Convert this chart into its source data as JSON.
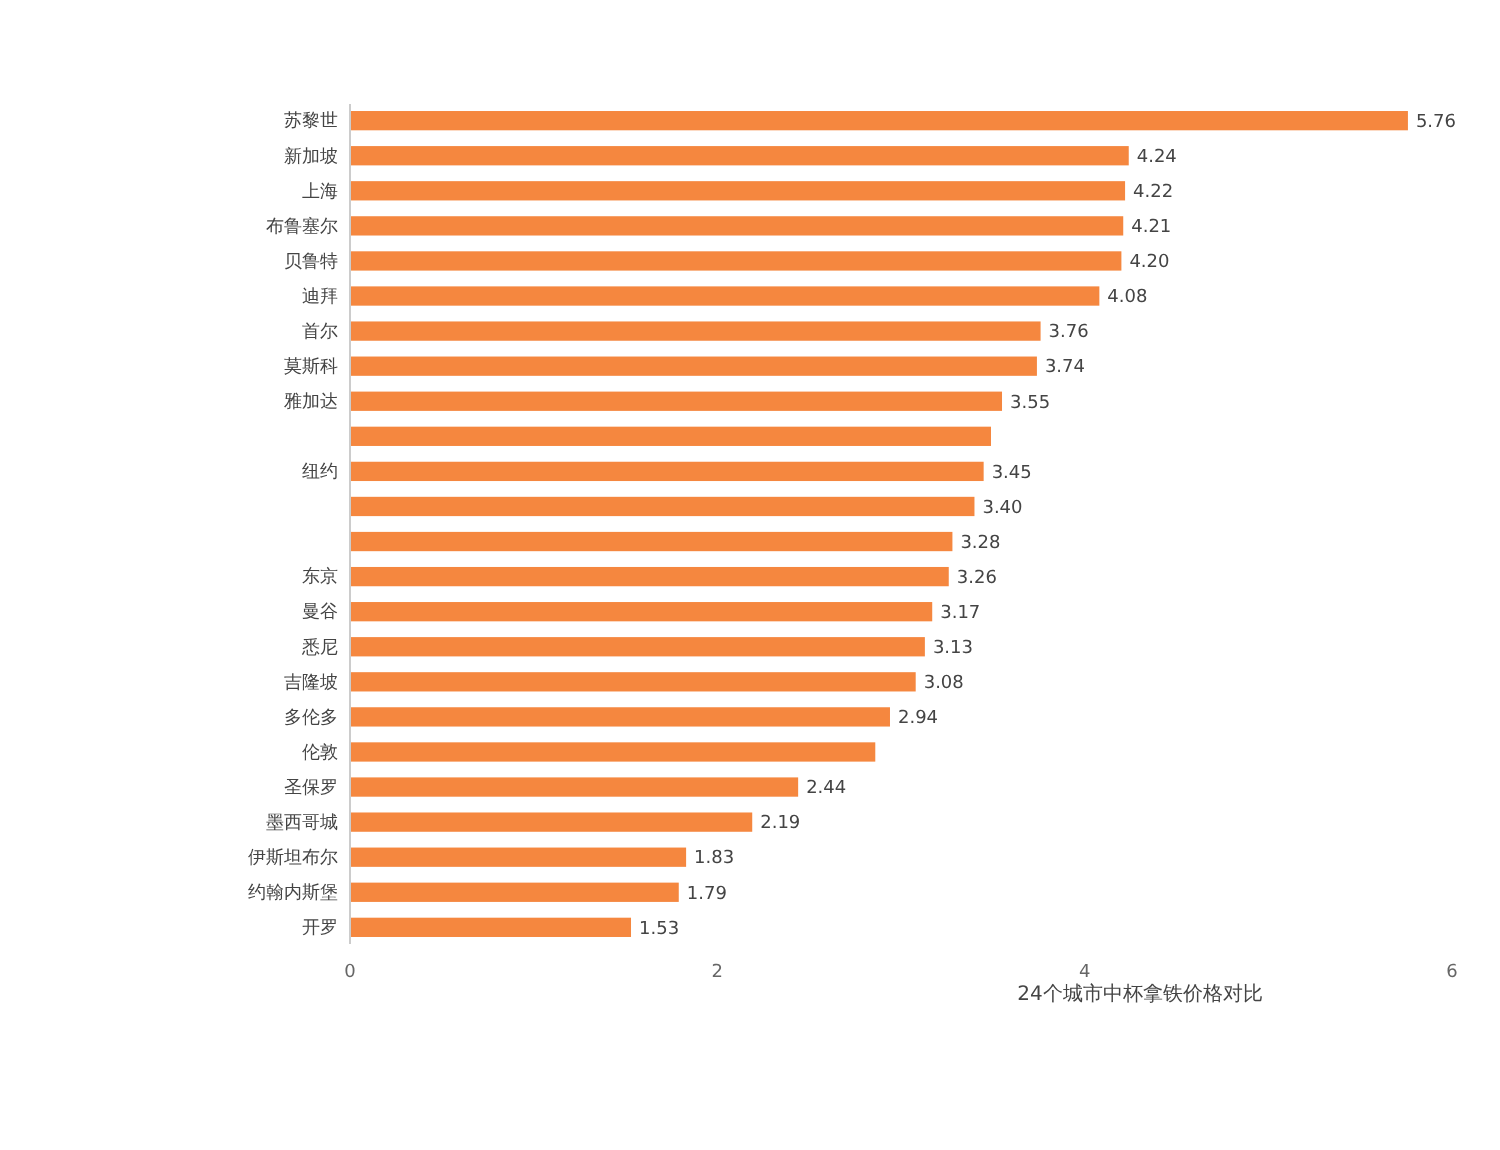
{
  "chart_data": {
    "type": "bar",
    "orientation": "horizontal",
    "xlabel": "24个城市中杯拿铁价格对比",
    "categories": [
      "苏黎世",
      "新加坡",
      "上海",
      "布鲁塞尔",
      "贝鲁特",
      "迪拜",
      "首尔",
      "莫斯科",
      "雅加达",
      null,
      "纽约",
      null,
      null,
      "东京",
      "曼谷",
      "悉尼",
      "吉隆坡",
      "多伦多",
      "伦敦",
      "圣保罗",
      "墨西哥城",
      "伊斯坦布尔",
      "约翰内斯堡",
      "开罗"
    ],
    "values": [
      5.76,
      4.24,
      4.22,
      4.21,
      4.2,
      4.08,
      3.76,
      3.74,
      3.55,
      3.49,
      3.45,
      3.4,
      3.28,
      3.26,
      3.17,
      3.13,
      3.08,
      2.94,
      2.86,
      2.44,
      2.19,
      1.83,
      1.79,
      1.53
    ],
    "value_labels": [
      "5.76",
      "4.24",
      "4.22",
      "4.21",
      "4.20",
      "4.08",
      "3.76",
      "3.74",
      "3.55",
      null,
      "3.45",
      "3.40",
      "3.28",
      "3.26",
      "3.17",
      "3.13",
      "3.08",
      "2.94",
      null,
      "2.44",
      "2.19",
      "1.83",
      "1.79",
      "1.53"
    ],
    "color": "#f5873f",
    "xlim": [
      0,
      6
    ],
    "xticks": [
      0,
      2,
      4,
      6
    ],
    "grid": false
  }
}
